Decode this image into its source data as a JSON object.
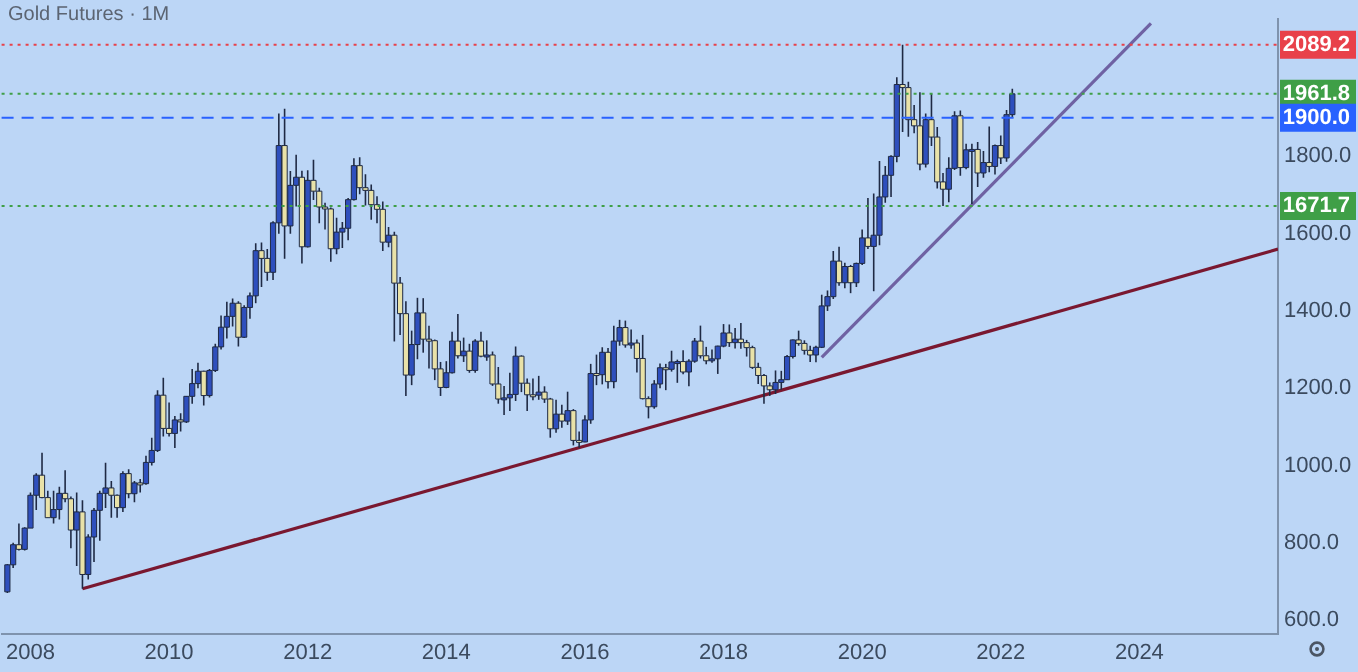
{
  "chart_data": {
    "type": "candlestick",
    "title": "Gold Futures · 1M",
    "grid": false,
    "legend": false,
    "marker": "none",
    "xlim": [
      "2007-08",
      "2026-01"
    ],
    "xticks": [
      {
        "value": "2008-01",
        "label": "2008"
      },
      {
        "value": "2010-01",
        "label": "2010"
      },
      {
        "value": "2012-01",
        "label": "2012"
      },
      {
        "value": "2014-01",
        "label": "2014"
      },
      {
        "value": "2016-01",
        "label": "2016"
      },
      {
        "value": "2018-01",
        "label": "2018"
      },
      {
        "value": "2020-01",
        "label": "2020"
      },
      {
        "value": "2022-01",
        "label": "2022"
      },
      {
        "value": "2024-01",
        "label": "2024"
      }
    ],
    "ylim": [
      565,
      2155
    ],
    "yticks": [
      {
        "value": 600,
        "label": "600.0"
      },
      {
        "value": 800,
        "label": "800.0"
      },
      {
        "value": 1000,
        "label": "1000.0"
      },
      {
        "value": 1200,
        "label": "1200.0"
      },
      {
        "value": 1400,
        "label": "1400.0"
      },
      {
        "value": 1600,
        "label": "1600.0"
      },
      {
        "value": 1800,
        "label": "1800.0"
      }
    ],
    "ref_lines": [
      {
        "axis": "y",
        "value": 2089.2,
        "label": "2089.2",
        "color": "#e8414a",
        "line_style": "dotted"
      },
      {
        "axis": "y",
        "value": 1961.8,
        "label": "1961.8",
        "color": "#3f9f47",
        "line_style": "dotted"
      },
      {
        "axis": "y",
        "value": 1900,
        "label": "1900.0",
        "color": "#2962ff",
        "line_style": "dashed"
      },
      {
        "axis": "y",
        "value": 1671.7,
        "label": "1671.7",
        "color": "#3f9f47",
        "line_style": "dotted"
      }
    ],
    "series": [
      {
        "type": "line",
        "color": "#7a1830",
        "x": [
          "2008-10",
          "2026-01"
        ],
        "values": [
          681,
          1560
        ]
      },
      {
        "type": "line",
        "color": "#6f62a3",
        "x": [
          "2019-06",
          "2024-03"
        ],
        "values": [
          1280,
          2144
        ]
      },
      {
        "x": [
          "2007-09",
          "2007-10",
          "2007-11",
          "2007-12",
          "2008-01",
          "2008-02",
          "2008-03",
          "2008-04",
          "2008-05",
          "2008-06",
          "2008-07",
          "2008-08",
          "2008-09",
          "2008-10",
          "2008-11",
          "2008-12",
          "2009-01",
          "2009-02",
          "2009-03",
          "2009-04",
          "2009-05",
          "2009-06",
          "2009-07",
          "2009-08",
          "2009-09",
          "2009-10",
          "2009-11",
          "2009-12",
          "2010-01",
          "2010-02",
          "2010-03",
          "2010-04",
          "2010-05",
          "2010-06",
          "2010-07",
          "2010-08",
          "2010-09",
          "2010-10",
          "2010-11",
          "2010-12",
          "2011-01",
          "2011-02",
          "2011-03",
          "2011-04",
          "2011-05",
          "2011-06",
          "2011-07",
          "2011-08",
          "2011-09",
          "2011-10",
          "2011-11",
          "2011-12",
          "2012-01",
          "2012-02",
          "2012-03",
          "2012-04",
          "2012-05",
          "2012-06",
          "2012-07",
          "2012-08",
          "2012-09",
          "2012-10",
          "2012-11",
          "2012-12",
          "2013-01",
          "2013-02",
          "2013-03",
          "2013-04",
          "2013-05",
          "2013-06",
          "2013-07",
          "2013-08",
          "2013-09",
          "2013-10",
          "2013-11",
          "2013-12",
          "2014-01",
          "2014-02",
          "2014-03",
          "2014-04",
          "2014-05",
          "2014-06",
          "2014-07",
          "2014-08",
          "2014-09",
          "2014-10",
          "2014-11",
          "2014-12",
          "2015-01",
          "2015-02",
          "2015-03",
          "2015-04",
          "2015-05",
          "2015-06",
          "2015-07",
          "2015-08",
          "2015-09",
          "2015-10",
          "2015-11",
          "2015-12",
          "2016-01",
          "2016-02",
          "2016-03",
          "2016-04",
          "2016-05",
          "2016-06",
          "2016-07",
          "2016-08",
          "2016-09",
          "2016-10",
          "2016-11",
          "2016-12",
          "2017-01",
          "2017-02",
          "2017-03",
          "2017-04",
          "2017-05",
          "2017-06",
          "2017-07",
          "2017-08",
          "2017-09",
          "2017-10",
          "2017-11",
          "2017-12",
          "2018-01",
          "2018-02",
          "2018-03",
          "2018-04",
          "2018-05",
          "2018-06",
          "2018-07",
          "2018-08",
          "2018-09",
          "2018-10",
          "2018-11",
          "2018-12",
          "2019-01",
          "2019-02",
          "2019-03",
          "2019-04",
          "2019-05",
          "2019-06",
          "2019-07",
          "2019-08",
          "2019-09",
          "2019-10",
          "2019-11",
          "2019-12",
          "2020-01",
          "2020-02",
          "2020-03",
          "2020-04",
          "2020-05",
          "2020-06",
          "2020-07",
          "2020-08",
          "2020-09",
          "2020-10",
          "2020-11",
          "2020-12",
          "2021-01",
          "2021-02",
          "2021-03",
          "2021-04",
          "2021-05",
          "2021-06",
          "2021-07",
          "2021-08",
          "2021-09",
          "2021-10",
          "2021-11",
          "2021-12",
          "2022-01",
          "2022-02",
          "2022-03"
        ],
        "ohlc": [
          [
            673,
            745,
            670,
            743
          ],
          [
            743,
            800,
            735,
            795
          ],
          [
            795,
            850,
            780,
            783
          ],
          [
            783,
            840,
            780,
            838
          ],
          [
            838,
            930,
            838,
            923
          ],
          [
            923,
            980,
            885,
            975
          ],
          [
            975,
            1033,
            915,
            917
          ],
          [
            917,
            935,
            865,
            865
          ],
          [
            865,
            935,
            850,
            886
          ],
          [
            886,
            945,
            860,
            928
          ],
          [
            928,
            988,
            905,
            914
          ],
          [
            914,
            920,
            786,
            833
          ],
          [
            833,
            930,
            740,
            880
          ],
          [
            880,
            910,
            681,
            718
          ],
          [
            718,
            822,
            705,
            815
          ],
          [
            815,
            890,
            750,
            884
          ],
          [
            884,
            935,
            805,
            928
          ],
          [
            928,
            1007,
            890,
            942
          ],
          [
            942,
            960,
            865,
            923
          ],
          [
            923,
            925,
            865,
            891
          ],
          [
            891,
            985,
            880,
            979
          ],
          [
            979,
            990,
            915,
            927
          ],
          [
            927,
            960,
            905,
            955
          ],
          [
            955,
            965,
            930,
            953
          ],
          [
            953,
            1025,
            950,
            1008
          ],
          [
            1008,
            1072,
            1000,
            1039
          ],
          [
            1039,
            1195,
            1035,
            1182
          ],
          [
            1182,
            1227,
            1075,
            1096
          ],
          [
            1096,
            1163,
            1075,
            1083
          ],
          [
            1083,
            1128,
            1045,
            1118
          ],
          [
            1118,
            1135,
            1088,
            1113
          ],
          [
            1113,
            1180,
            1110,
            1179
          ],
          [
            1179,
            1250,
            1160,
            1212
          ],
          [
            1212,
            1266,
            1200,
            1244
          ],
          [
            1244,
            1245,
            1155,
            1181
          ],
          [
            1181,
            1250,
            1176,
            1246
          ],
          [
            1246,
            1315,
            1242,
            1307
          ],
          [
            1307,
            1388,
            1300,
            1358
          ],
          [
            1358,
            1424,
            1329,
            1386
          ],
          [
            1386,
            1432,
            1360,
            1420
          ],
          [
            1420,
            1425,
            1308,
            1332
          ],
          [
            1332,
            1415,
            1330,
            1409
          ],
          [
            1409,
            1448,
            1380,
            1439
          ],
          [
            1439,
            1575,
            1420,
            1556
          ],
          [
            1556,
            1577,
            1462,
            1536
          ],
          [
            1536,
            1560,
            1478,
            1500
          ],
          [
            1500,
            1632,
            1480,
            1628
          ],
          [
            1628,
            1911,
            1600,
            1828
          ],
          [
            1828,
            1923,
            1535,
            1620
          ],
          [
            1620,
            1762,
            1600,
            1725
          ],
          [
            1725,
            1804,
            1670,
            1746
          ],
          [
            1746,
            1763,
            1523,
            1566
          ],
          [
            1566,
            1764,
            1564,
            1738
          ],
          [
            1738,
            1791,
            1687,
            1710
          ],
          [
            1710,
            1719,
            1627,
            1669
          ],
          [
            1669,
            1680,
            1611,
            1664
          ],
          [
            1664,
            1668,
            1527,
            1561
          ],
          [
            1561,
            1641,
            1547,
            1604
          ],
          [
            1604,
            1630,
            1563,
            1614
          ],
          [
            1614,
            1692,
            1583,
            1688
          ],
          [
            1688,
            1795,
            1686,
            1776
          ],
          [
            1776,
            1798,
            1702,
            1719
          ],
          [
            1719,
            1754,
            1673,
            1712
          ],
          [
            1712,
            1727,
            1636,
            1675
          ],
          [
            1675,
            1697,
            1627,
            1663
          ],
          [
            1663,
            1683,
            1555,
            1578
          ],
          [
            1578,
            1617,
            1565,
            1596
          ],
          [
            1596,
            1605,
            1321,
            1472
          ],
          [
            1472,
            1488,
            1338,
            1393
          ],
          [
            1393,
            1425,
            1180,
            1234
          ],
          [
            1234,
            1349,
            1208,
            1313
          ],
          [
            1313,
            1434,
            1275,
            1395
          ],
          [
            1395,
            1433,
            1292,
            1327
          ],
          [
            1327,
            1362,
            1251,
            1323
          ],
          [
            1323,
            1326,
            1221,
            1250
          ],
          [
            1250,
            1268,
            1180,
            1202
          ],
          [
            1202,
            1270,
            1200,
            1240
          ],
          [
            1240,
            1346,
            1238,
            1322
          ],
          [
            1322,
            1392,
            1277,
            1284
          ],
          [
            1284,
            1331,
            1268,
            1296
          ],
          [
            1296,
            1315,
            1240,
            1246
          ],
          [
            1246,
            1327,
            1240,
            1322
          ],
          [
            1322,
            1346,
            1280,
            1283
          ],
          [
            1283,
            1324,
            1271,
            1286
          ],
          [
            1286,
            1295,
            1206,
            1211
          ],
          [
            1211,
            1255,
            1160,
            1172
          ],
          [
            1172,
            1206,
            1131,
            1175
          ],
          [
            1175,
            1240,
            1141,
            1184
          ],
          [
            1184,
            1308,
            1167,
            1283
          ],
          [
            1283,
            1285,
            1190,
            1213
          ],
          [
            1213,
            1225,
            1141,
            1183
          ],
          [
            1183,
            1225,
            1169,
            1182
          ],
          [
            1182,
            1232,
            1170,
            1190
          ],
          [
            1190,
            1205,
            1162,
            1172
          ],
          [
            1172,
            1175,
            1072,
            1095
          ],
          [
            1095,
            1170,
            1085,
            1133
          ],
          [
            1133,
            1157,
            1098,
            1115
          ],
          [
            1115,
            1191,
            1105,
            1142
          ],
          [
            1142,
            1146,
            1052,
            1065
          ],
          [
            1065,
            1088,
            1046,
            1061
          ],
          [
            1061,
            1130,
            1060,
            1118
          ],
          [
            1118,
            1263,
            1108,
            1238
          ],
          [
            1238,
            1287,
            1208,
            1235
          ],
          [
            1235,
            1306,
            1210,
            1293
          ],
          [
            1293,
            1304,
            1199,
            1217
          ],
          [
            1217,
            1362,
            1200,
            1322
          ],
          [
            1322,
            1377,
            1310,
            1357
          ],
          [
            1357,
            1375,
            1305,
            1312
          ],
          [
            1312,
            1352,
            1302,
            1317
          ],
          [
            1317,
            1326,
            1241,
            1277
          ],
          [
            1277,
            1338,
            1171,
            1173
          ],
          [
            1173,
            1179,
            1122,
            1152
          ],
          [
            1152,
            1221,
            1147,
            1211
          ],
          [
            1211,
            1264,
            1200,
            1253
          ],
          [
            1253,
            1263,
            1195,
            1249
          ],
          [
            1249,
            1297,
            1243,
            1268
          ],
          [
            1268,
            1274,
            1214,
            1269
          ],
          [
            1269,
            1298,
            1236,
            1242
          ],
          [
            1242,
            1275,
            1205,
            1270
          ],
          [
            1270,
            1330,
            1266,
            1322
          ],
          [
            1322,
            1362,
            1277,
            1284
          ],
          [
            1284,
            1307,
            1262,
            1271
          ],
          [
            1271,
            1300,
            1266,
            1276
          ],
          [
            1276,
            1310,
            1237,
            1309
          ],
          [
            1309,
            1366,
            1306,
            1343
          ],
          [
            1343,
            1365,
            1307,
            1318
          ],
          [
            1318,
            1356,
            1303,
            1327
          ],
          [
            1327,
            1369,
            1302,
            1318
          ],
          [
            1318,
            1325,
            1282,
            1305
          ],
          [
            1305,
            1310,
            1250,
            1254
          ],
          [
            1254,
            1266,
            1211,
            1233
          ],
          [
            1233,
            1237,
            1160,
            1206
          ],
          [
            1206,
            1215,
            1180,
            1196
          ],
          [
            1196,
            1246,
            1185,
            1215
          ],
          [
            1215,
            1245,
            1196,
            1222
          ],
          [
            1222,
            1286,
            1221,
            1282
          ],
          [
            1282,
            1326,
            1277,
            1325
          ],
          [
            1325,
            1349,
            1310,
            1316
          ],
          [
            1316,
            1324,
            1287,
            1298
          ],
          [
            1298,
            1310,
            1268,
            1286
          ],
          [
            1286,
            1310,
            1267,
            1306
          ],
          [
            1306,
            1442,
            1304,
            1413
          ],
          [
            1413,
            1453,
            1400,
            1437
          ],
          [
            1437,
            1555,
            1431,
            1529
          ],
          [
            1529,
            1566,
            1465,
            1473
          ],
          [
            1473,
            1525,
            1459,
            1515
          ],
          [
            1515,
            1519,
            1446,
            1473
          ],
          [
            1473,
            1525,
            1462,
            1523
          ],
          [
            1523,
            1611,
            1519,
            1589
          ],
          [
            1589,
            1692,
            1560,
            1567
          ],
          [
            1567,
            1704,
            1451,
            1596
          ],
          [
            1596,
            1788,
            1570,
            1695
          ],
          [
            1695,
            1775,
            1680,
            1751
          ],
          [
            1751,
            1803,
            1695,
            1800
          ],
          [
            1800,
            2005,
            1785,
            1986
          ],
          [
            1986,
            2089.2,
            1863,
            1978
          ],
          [
            1978,
            1993,
            1851,
            1895
          ],
          [
            1895,
            1933,
            1860,
            1879
          ],
          [
            1879,
            1966,
            1764,
            1780
          ],
          [
            1780,
            1911,
            1771,
            1895
          ],
          [
            1895,
            1962,
            1827,
            1850
          ],
          [
            1850,
            1876,
            1717,
            1734
          ],
          [
            1734,
            1757,
            1671.7,
            1715
          ],
          [
            1715,
            1798,
            1681,
            1769
          ],
          [
            1769,
            1917,
            1765,
            1905
          ],
          [
            1905,
            1919,
            1750,
            1771
          ],
          [
            1771,
            1833,
            1767,
            1817
          ],
          [
            1817,
            1833,
            1677,
            1818
          ],
          [
            1818,
            1837,
            1721,
            1757
          ],
          [
            1757,
            1814,
            1745,
            1784
          ],
          [
            1784,
            1877,
            1759,
            1774
          ],
          [
            1774,
            1831,
            1753,
            1828
          ],
          [
            1828,
            1854,
            1780,
            1796
          ],
          [
            1796,
            1920,
            1786,
            1908
          ],
          [
            1908,
            1975,
            1900,
            1961.8
          ]
        ],
        "colors": [
          "#2e4fbd",
          "#2e4fbd",
          "#e9e2a8",
          "#2e4fbd",
          "#2e4fbd",
          "#2e4fbd",
          "#e9e2a8",
          "#e9e2a8",
          "#2e4fbd",
          "#2e4fbd",
          "#e9e2a8",
          "#e9e2a8",
          "#2e4fbd",
          "#e9e2a8",
          "#2e4fbd",
          "#2e4fbd",
          "#2e4fbd",
          "#2e4fbd",
          "#e9e2a8",
          "#e9e2a8",
          "#2e4fbd",
          "#e9e2a8",
          "#2e4fbd",
          "#e9e2a8",
          "#2e4fbd",
          "#2e4fbd",
          "#2e4fbd",
          "#e9e2a8",
          "#e9e2a8",
          "#2e4fbd",
          "#e9e2a8",
          "#2e4fbd",
          "#2e4fbd",
          "#2e4fbd",
          "#e9e2a8",
          "#2e4fbd",
          "#2e4fbd",
          "#2e4fbd",
          "#2e4fbd",
          "#2e4fbd",
          "#e9e2a8",
          "#2e4fbd",
          "#2e4fbd",
          "#2e4fbd",
          "#e9e2a8",
          "#e9e2a8",
          "#2e4fbd",
          "#2e4fbd",
          "#e9e2a8",
          "#2e4fbd",
          "#2e4fbd",
          "#e9e2a8",
          "#2e4fbd",
          "#e9e2a8",
          "#e9e2a8",
          "#e9e2a8",
          "#e9e2a8",
          "#2e4fbd",
          "#2e4fbd",
          "#2e4fbd",
          "#2e4fbd",
          "#e9e2a8",
          "#e9e2a8",
          "#e9e2a8",
          "#e9e2a8",
          "#e9e2a8",
          "#2e4fbd",
          "#e9e2a8",
          "#e9e2a8",
          "#e9e2a8",
          "#2e4fbd",
          "#2e4fbd",
          "#e9e2a8",
          "#e9e2a8",
          "#e9e2a8",
          "#e9e2a8",
          "#2e4fbd",
          "#2e4fbd",
          "#e9e2a8",
          "#2e4fbd",
          "#e9e2a8",
          "#2e4fbd",
          "#e9e2a8",
          "#2e4fbd",
          "#e9e2a8",
          "#e9e2a8",
          "#2e4fbd",
          "#2e4fbd",
          "#2e4fbd",
          "#e9e2a8",
          "#e9e2a8",
          "#e9e2a8",
          "#2e4fbd",
          "#e9e2a8",
          "#e9e2a8",
          "#2e4fbd",
          "#e9e2a8",
          "#2e4fbd",
          "#e9e2a8",
          "#e9e2a8",
          "#2e4fbd",
          "#2e4fbd",
          "#e9e2a8",
          "#2e4fbd",
          "#e9e2a8",
          "#2e4fbd",
          "#2e4fbd",
          "#e9e2a8",
          "#2e4fbd",
          "#e9e2a8",
          "#e9e2a8",
          "#e9e2a8",
          "#2e4fbd",
          "#2e4fbd",
          "#e9e2a8",
          "#2e4fbd",
          "#2e4fbd",
          "#e9e2a8",
          "#2e4fbd",
          "#2e4fbd",
          "#e9e2a8",
          "#e9e2a8",
          "#2e4fbd",
          "#2e4fbd",
          "#2e4fbd",
          "#e9e2a8",
          "#2e4fbd",
          "#e9e2a8",
          "#e9e2a8",
          "#e9e2a8",
          "#e9e2a8",
          "#e9e2a8",
          "#e9e2a8",
          "#2e4fbd",
          "#2e4fbd",
          "#2e4fbd",
          "#2e4fbd",
          "#e9e2a8",
          "#e9e2a8",
          "#e9e2a8",
          "#2e4fbd",
          "#2e4fbd",
          "#2e4fbd",
          "#2e4fbd",
          "#e9e2a8",
          "#2e4fbd",
          "#e9e2a8",
          "#2e4fbd",
          "#2e4fbd",
          "#e9e2a8",
          "#2e4fbd",
          "#2e4fbd",
          "#2e4fbd",
          "#2e4fbd",
          "#2e4fbd",
          "#e9e2a8",
          "#e9e2a8",
          "#e9e2a8",
          "#e9e2a8",
          "#2e4fbd",
          "#e9e2a8",
          "#e9e2a8",
          "#e9e2a8",
          "#2e4fbd",
          "#2e4fbd",
          "#e9e2a8",
          "#2e4fbd",
          "#2e4fbd",
          "#e9e2a8",
          "#2e4fbd",
          "#e9e2a8",
          "#2e4fbd",
          "#e9e2a8",
          "#2e4fbd",
          "#2e4fbd"
        ]
      }
    ]
  }
}
